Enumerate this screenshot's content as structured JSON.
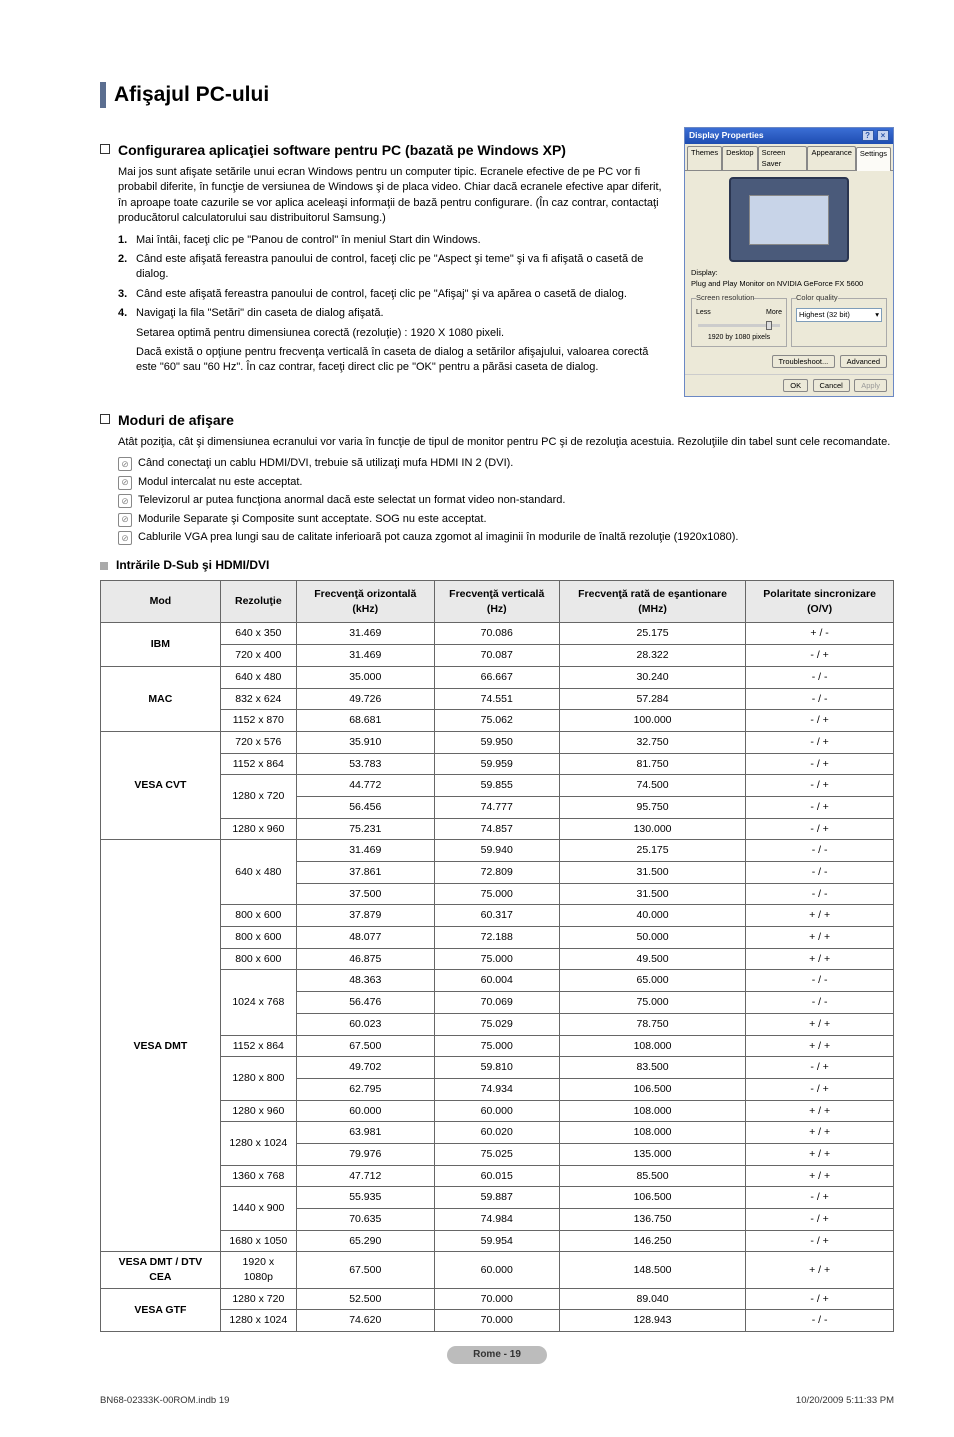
{
  "title": "Afişajul PC-ului",
  "section1": {
    "title": "Configurarea aplicaţiei software pentru PC (bazată pe Windows XP)",
    "intro": "Mai jos sunt afişate setările unui ecran Windows pentru un computer tipic. Ecranele efective de pe PC vor fi probabil diferite, în funcţie de versiunea de Windows şi de placa video. Chiar dacă ecranele efective apar diferit, în aproape toate cazurile se vor aplica aceleaşi informaţii de bază pentru configurare. (În caz contrar, contactaţi producătorul calculatorului sau distribuitorul Samsung.)",
    "steps": [
      "Mai întâi, faceţi clic pe \"Panou de control\" în meniul Start din Windows.",
      "Când este afişată fereastra panoului de control, faceţi clic pe \"Aspect şi teme\" şi va fi afişată o casetă de dialog.",
      "Când este afişată fereastra panoului de control, faceţi clic pe \"Afişaj\" şi va apărea o casetă de dialog.",
      "Navigaţi la fila \"Setări\" din caseta de dialog afişată."
    ],
    "step4_extra1": "Setarea optimă pentru dimensiunea corectă (rezoluţie) : 1920 X 1080 pixeli.",
    "step4_extra2": "Dacă există o opţiune pentru frecvenţa verticală în caseta de dialog a setărilor afişajului, valoarea corectă este \"60\" sau \"60 Hz\". În caz contrar, faceţi direct clic pe \"OK\" pentru a părăsi caseta de dialog."
  },
  "section2": {
    "title": "Moduri de afişare",
    "intro": "Atât poziţia, cât şi dimensiunea ecranului vor varia în funcţie de tipul de monitor pentru PC şi de rezoluţia acestuia. Rezoluţiile din tabel sunt cele recomandate.",
    "notes": [
      "Când conectaţi un cablu HDMI/DVI, trebuie să utilizaţi mufa HDMI IN 2 (DVI).",
      "Modul intercalat nu este acceptat.",
      "Televizorul ar putea funcţiona anormal dacă este selectat un format video non-standard.",
      "Modurile Separate şi Composite sunt acceptate. SOG nu este acceptat.",
      "Cablurile VGA prea lungi sau de calitate inferioară pot cauza zgomot al imaginii în modurile de înaltă rezoluţie (1920x1080)."
    ],
    "subhead": "Intrările D-Sub şi HDMI/DVI"
  },
  "table": {
    "headers": [
      "Mod",
      "Rezoluţie",
      "Frecvenţă orizontală (kHz)",
      "Frecvenţă verticală (Hz)",
      "Frecvenţă rată de eşantionare (MHz)",
      "Polaritate sincronizare (O/V)"
    ],
    "groups": [
      {
        "mode": "IBM",
        "rows": [
          [
            "640 x 350",
            "31.469",
            "70.086",
            "25.175",
            "+ / -"
          ],
          [
            "720 x 400",
            "31.469",
            "70.087",
            "28.322",
            "- / +"
          ]
        ]
      },
      {
        "mode": "MAC",
        "rows": [
          [
            "640 x 480",
            "35.000",
            "66.667",
            "30.240",
            "- / -"
          ],
          [
            "832 x 624",
            "49.726",
            "74.551",
            "57.284",
            "- / -"
          ],
          [
            "1152 x 870",
            "68.681",
            "75.062",
            "100.000",
            "- / +"
          ]
        ]
      },
      {
        "mode": "VESA CVT",
        "subgroups": [
          {
            "rows": [
              [
                "720 x 576",
                "35.910",
                "59.950",
                "32.750",
                "- / +"
              ]
            ]
          },
          {
            "rows": [
              [
                "1152 x 864",
                "53.783",
                "59.959",
                "81.750",
                "- / +"
              ]
            ]
          },
          {
            "res": "1280 x 720",
            "rows": [
              [
                "",
                "44.772",
                "59.855",
                "74.500",
                "- / +"
              ],
              [
                "",
                "56.456",
                "74.777",
                "95.750",
                "- / +"
              ]
            ]
          },
          {
            "rows": [
              [
                "1280 x 960",
                "75.231",
                "74.857",
                "130.000",
                "- / +"
              ]
            ]
          }
        ]
      },
      {
        "mode": "VESA DMT",
        "subgroups": [
          {
            "res": "640 x 480",
            "rows": [
              [
                "",
                "31.469",
                "59.940",
                "25.175",
                "- / -"
              ],
              [
                "",
                "37.861",
                "72.809",
                "31.500",
                "- / -"
              ],
              [
                "",
                "37.500",
                "75.000",
                "31.500",
                "- / -"
              ]
            ]
          },
          {
            "rows": [
              [
                "800 x 600",
                "37.879",
                "60.317",
                "40.000",
                "+ / +"
              ]
            ]
          },
          {
            "rows": [
              [
                "800 x 600",
                "48.077",
                "72.188",
                "50.000",
                "+ / +"
              ]
            ]
          },
          {
            "rows": [
              [
                "800 x 600",
                "46.875",
                "75.000",
                "49.500",
                "+ / +"
              ]
            ]
          },
          {
            "res": "1024 x 768",
            "rows": [
              [
                "",
                "48.363",
                "60.004",
                "65.000",
                "- / -"
              ],
              [
                "",
                "56.476",
                "70.069",
                "75.000",
                "- / -"
              ],
              [
                "",
                "60.023",
                "75.029",
                "78.750",
                "+ / +"
              ]
            ]
          },
          {
            "rows": [
              [
                "1152 x 864",
                "67.500",
                "75.000",
                "108.000",
                "+ / +"
              ]
            ]
          },
          {
            "res": "1280 x 800",
            "rows": [
              [
                "",
                "49.702",
                "59.810",
                "83.500",
                "- / +"
              ],
              [
                "",
                "62.795",
                "74.934",
                "106.500",
                "- / +"
              ]
            ]
          },
          {
            "rows": [
              [
                "1280 x 960",
                "60.000",
                "60.000",
                "108.000",
                "+ / +"
              ]
            ]
          },
          {
            "res": "1280 x 1024",
            "rows": [
              [
                "",
                "63.981",
                "60.020",
                "108.000",
                "+ / +"
              ],
              [
                "",
                "79.976",
                "75.025",
                "135.000",
                "+ / +"
              ]
            ]
          },
          {
            "rows": [
              [
                "1360 x 768",
                "47.712",
                "60.015",
                "85.500",
                "+ / +"
              ]
            ]
          },
          {
            "res": "1440 x 900",
            "rows": [
              [
                "",
                "55.935",
                "59.887",
                "106.500",
                "- / +"
              ],
              [
                "",
                "70.635",
                "74.984",
                "136.750",
                "- / +"
              ]
            ]
          },
          {
            "rows": [
              [
                "1680 x 1050",
                "65.290",
                "59.954",
                "146.250",
                "- / +"
              ]
            ]
          }
        ]
      },
      {
        "mode": "VESA DMT / DTV CEA",
        "rows": [
          [
            "1920 x 1080p",
            "67.500",
            "60.000",
            "148.500",
            "+ / +"
          ]
        ]
      },
      {
        "mode": "VESA GTF",
        "rows": [
          [
            "1280 x 720",
            "52.500",
            "70.000",
            "89.040",
            "- / +"
          ],
          [
            "1280 x 1024",
            "74.620",
            "70.000",
            "128.943",
            "- / -"
          ]
        ]
      }
    ]
  },
  "xp": {
    "title": "Display Properties",
    "tabs": [
      "Themes",
      "Desktop",
      "Screen Saver",
      "Appearance",
      "Settings"
    ],
    "display_label": "Display:",
    "display_value": "Plug and Play Monitor on NVIDIA GeForce FX 5600",
    "screen_res": "Screen resolution",
    "less": "Less",
    "more": "More",
    "res_value": "1920 by 1080 pixels",
    "color_quality": "Color quality",
    "color_value": "Highest (32 bit)",
    "troubleshoot": "Troubleshoot...",
    "advanced": "Advanced",
    "ok": "OK",
    "cancel": "Cancel",
    "apply": "Apply"
  },
  "page_footer": "Rome - 19",
  "doc_footer_left": "BN68-02333K-00ROM.indb   19",
  "doc_footer_right": "10/20/2009   5:11:33 PM"
}
